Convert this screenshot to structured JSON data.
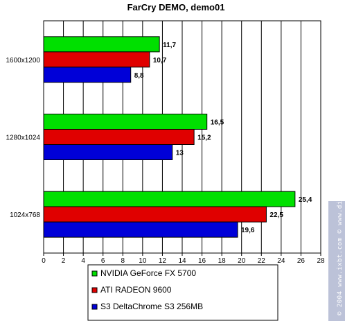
{
  "chart_data": {
    "type": "bar",
    "orientation": "horizontal",
    "title": "FarCry DEMO, demo01",
    "categories": [
      "1600x1200",
      "1280x1024",
      "1024x768"
    ],
    "series": [
      {
        "name": "NVIDIA GeForce FX 5700",
        "color": "#00e000",
        "values": [
          11.7,
          16.5,
          25.4
        ],
        "labels": [
          "11,7",
          "16,5",
          "25,4"
        ]
      },
      {
        "name": "ATI RADEON 9600",
        "color": "#e00000",
        "values": [
          10.7,
          15.2,
          22.5
        ],
        "labels": [
          "10,7",
          "15,2",
          "22,5"
        ]
      },
      {
        "name": "S3 DeltaChrome S3 256MB",
        "color": "#0000d8",
        "values": [
          8.8,
          13,
          19.6
        ],
        "labels": [
          "8,8",
          "13",
          "19,6"
        ]
      }
    ],
    "xlim": [
      0,
      28
    ],
    "xticks": [
      "0",
      "2",
      "4",
      "6",
      "8",
      "10",
      "12",
      "14",
      "16",
      "18",
      "20",
      "22",
      "24",
      "26",
      "28"
    ],
    "grid": true,
    "legend_position": "bottom"
  },
  "watermark": "© 2004 www.ixbt.com © www.digit-life.com"
}
